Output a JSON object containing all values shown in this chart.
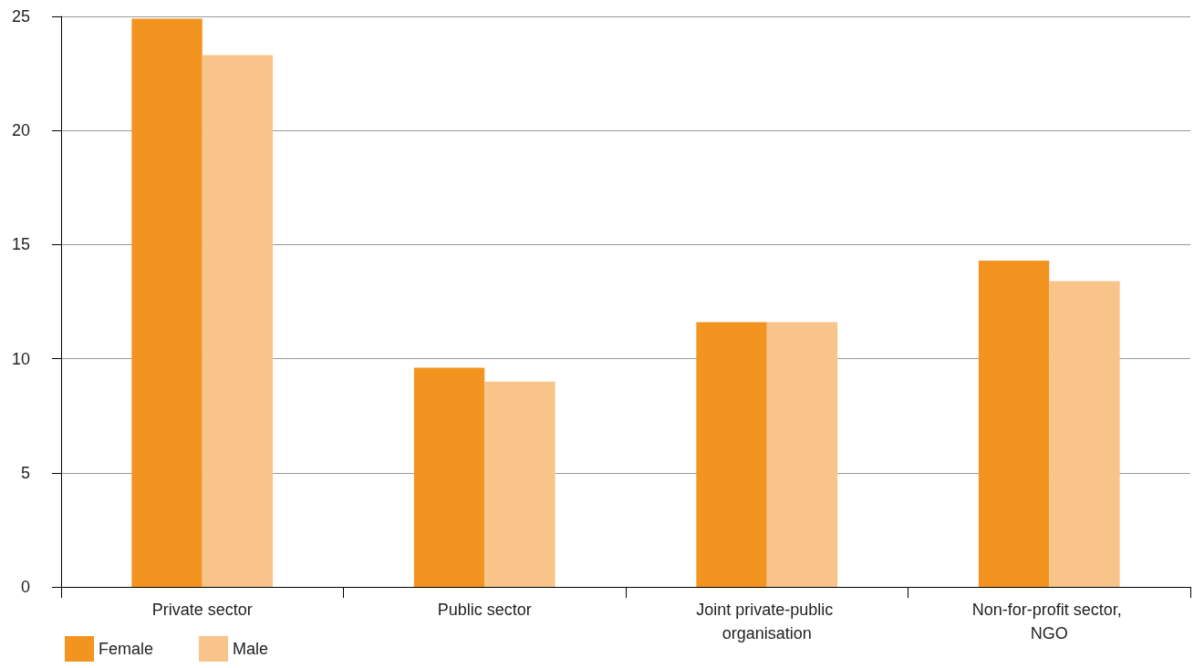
{
  "chart_data": {
    "type": "bar",
    "categories": [
      "Private sector",
      "Public sector",
      "Joint private-public organisation",
      "Non-for-profit sector, NGO"
    ],
    "series": [
      {
        "name": "Female",
        "color": "#f39320",
        "values": [
          24.9,
          9.6,
          11.6,
          14.3
        ]
      },
      {
        "name": "Male",
        "color": "#f9c48a",
        "values": [
          23.3,
          9.0,
          11.6,
          13.4
        ]
      }
    ],
    "ylim": [
      0,
      25
    ],
    "yticks": [
      0,
      5,
      10,
      15,
      20,
      25
    ],
    "grid": "y",
    "legend": "bottom left"
  }
}
